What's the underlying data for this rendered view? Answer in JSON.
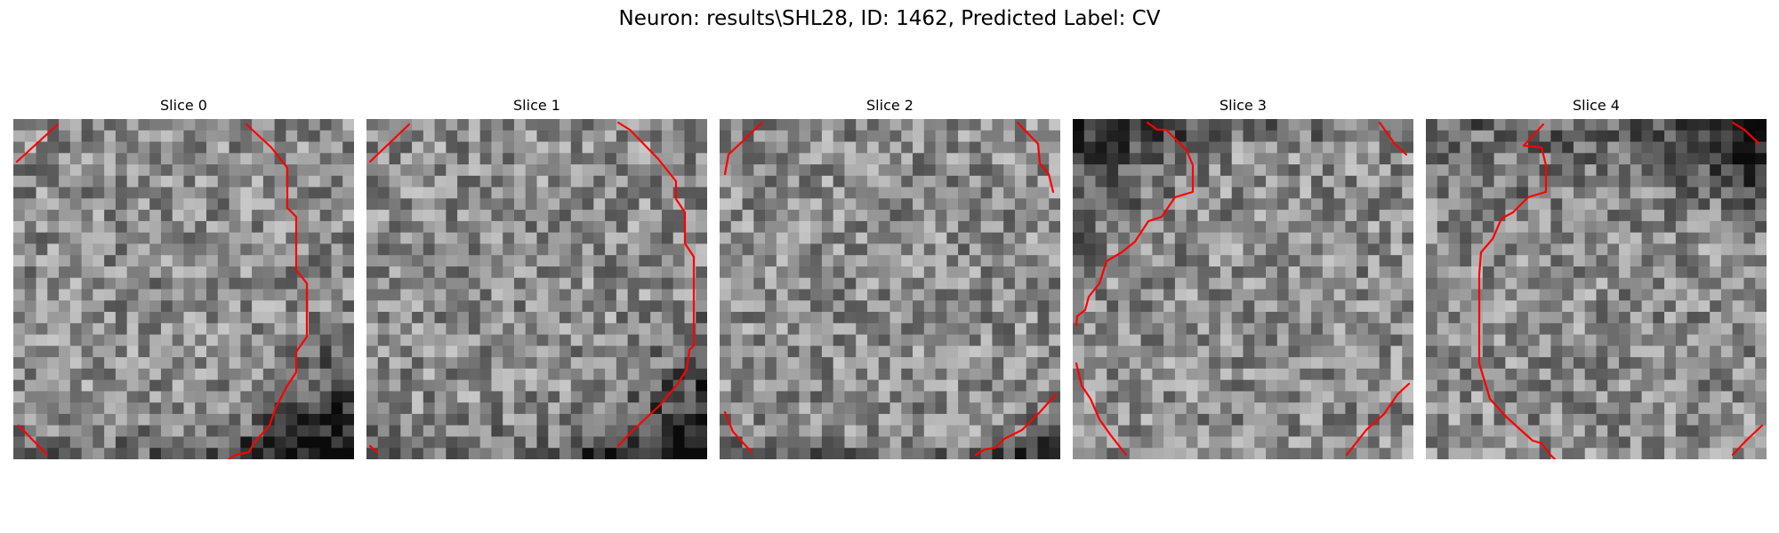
{
  "figure": {
    "title": "Neuron: results\\SHL28, ID: 1462, Predicted Label: CV"
  },
  "panels": [
    {
      "title": "Slice 0",
      "seed": 11,
      "dark": "bottom-right"
    },
    {
      "title": "Slice 1",
      "seed": 23,
      "dark": "bottom-right"
    },
    {
      "title": "Slice 2",
      "seed": 37,
      "dark": "bottom"
    },
    {
      "title": "Slice 3",
      "seed": 51,
      "dark": "top-left"
    },
    {
      "title": "Slice 4",
      "seed": 73,
      "dark": "top-right"
    }
  ],
  "colors": {
    "contour": "#ff0000",
    "background": "#ffffff"
  }
}
